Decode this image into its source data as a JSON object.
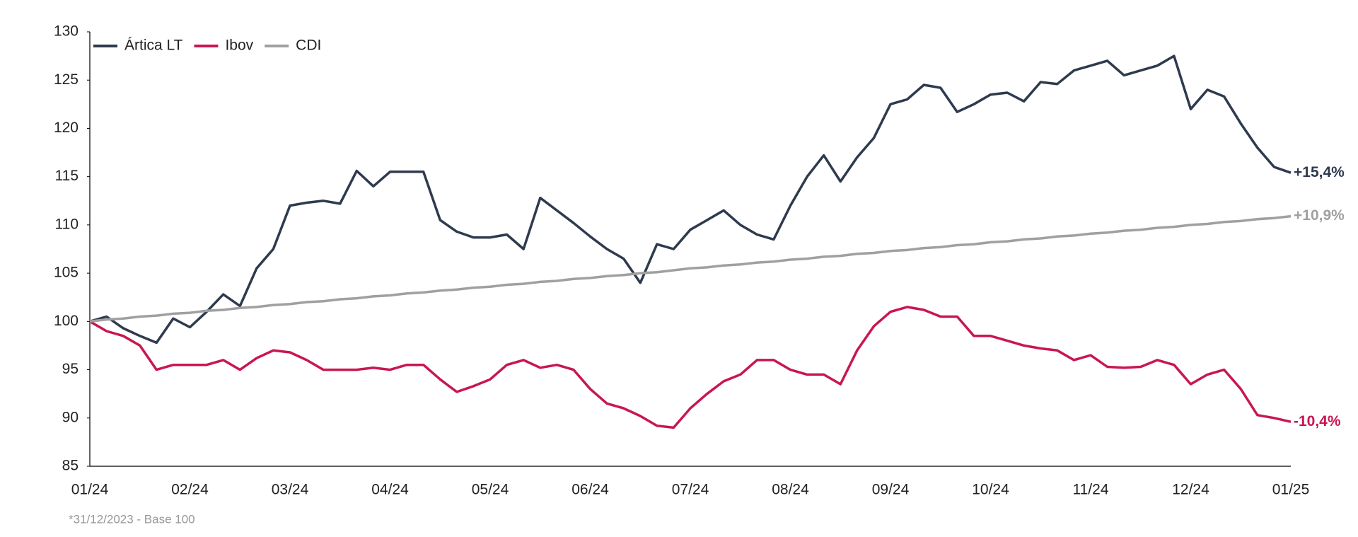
{
  "chart_data": {
    "type": "line",
    "categories": [
      "01/24",
      null,
      null,
      null,
      null,
      null,
      "02/24",
      null,
      null,
      null,
      null,
      null,
      "03/24",
      null,
      null,
      null,
      null,
      null,
      "04/24",
      null,
      null,
      null,
      null,
      null,
      "05/24",
      null,
      null,
      null,
      null,
      null,
      "06/24",
      null,
      null,
      null,
      null,
      null,
      "07/24",
      null,
      null,
      null,
      null,
      null,
      "08/24",
      null,
      null,
      null,
      null,
      null,
      "09/24",
      null,
      null,
      null,
      null,
      null,
      "10/24",
      null,
      null,
      null,
      null,
      null,
      "11/24",
      null,
      null,
      null,
      null,
      null,
      "12/24",
      null,
      null,
      null,
      null,
      null,
      "01/25"
    ],
    "series": [
      {
        "name": "Ártica LT",
        "color": "#2e3a4e",
        "end_label": "+15,4%",
        "values": [
          100,
          100.5,
          99.3,
          98.5,
          97.8,
          100.3,
          99.4,
          101,
          102.8,
          101.6,
          105.5,
          107.5,
          112,
          112.3,
          112.5,
          112.2,
          115.6,
          114,
          115.5,
          115.5,
          115.5,
          110.5,
          109.3,
          108.7,
          108.7,
          109,
          107.5,
          112.8,
          111.5,
          110.2,
          108.8,
          107.5,
          106.5,
          104,
          108,
          107.5,
          109.5,
          110.5,
          111.5,
          110,
          109,
          108.5,
          112,
          115,
          117.2,
          114.5,
          117,
          119,
          122.5,
          123,
          124.5,
          124.2,
          121.7,
          122.5,
          123.5,
          123.7,
          122.8,
          124.8,
          124.6,
          126,
          126.5,
          127,
          125.5,
          126,
          126.5,
          127.5,
          122,
          124,
          123.3,
          120.5,
          118,
          116,
          115.4
        ]
      },
      {
        "name": "Ibov",
        "color": "#c8174f",
        "end_label": "-10,4%",
        "values": [
          100,
          99,
          98.5,
          97.5,
          95,
          95.5,
          95.5,
          95.5,
          96,
          95,
          96.2,
          97,
          96.8,
          96,
          95,
          95,
          95,
          95.2,
          95,
          95.5,
          95.5,
          94,
          92.7,
          93.3,
          94,
          95.5,
          96,
          95.2,
          95.5,
          95,
          93,
          91.5,
          91,
          90.2,
          89.2,
          89,
          91,
          92.5,
          93.8,
          94.5,
          96,
          96,
          95,
          94.5,
          94.5,
          93.5,
          97,
          99.5,
          101,
          101.5,
          101.2,
          100.5,
          100.5,
          98.5,
          98.5,
          98,
          97.5,
          97.2,
          97,
          96,
          96.5,
          95.3,
          95.2,
          95.3,
          96,
          95.5,
          93.5,
          94.5,
          95,
          93,
          90.3,
          90,
          89.6
        ]
      },
      {
        "name": "CDI",
        "color": "#a0a0a0",
        "end_label": "+10,9%",
        "values": [
          100.0,
          100.2,
          100.3,
          100.5,
          100.6,
          100.8,
          100.9,
          101.1,
          101.2,
          101.4,
          101.5,
          101.7,
          101.8,
          102.0,
          102.1,
          102.3,
          102.4,
          102.6,
          102.7,
          102.9,
          103.0,
          103.2,
          103.3,
          103.5,
          103.6,
          103.8,
          103.9,
          104.1,
          104.2,
          104.4,
          104.5,
          104.7,
          104.8,
          105.0,
          105.1,
          105.3,
          105.5,
          105.6,
          105.8,
          105.9,
          106.1,
          106.2,
          106.4,
          106.5,
          106.7,
          106.8,
          107.0,
          107.1,
          107.3,
          107.4,
          107.6,
          107.7,
          107.9,
          108.0,
          108.2,
          108.3,
          108.5,
          108.6,
          108.8,
          108.9,
          109.1,
          109.2,
          109.4,
          109.5,
          109.7,
          109.8,
          110.0,
          110.1,
          110.3,
          110.4,
          110.6,
          110.7,
          110.9
        ]
      }
    ],
    "ylim": [
      85,
      130
    ],
    "yticks": [
      85,
      90,
      95,
      100,
      105,
      110,
      115,
      120,
      125,
      130
    ],
    "grid": false,
    "legend": "top-left",
    "footnote": "*31/12/2023 - Base 100"
  }
}
